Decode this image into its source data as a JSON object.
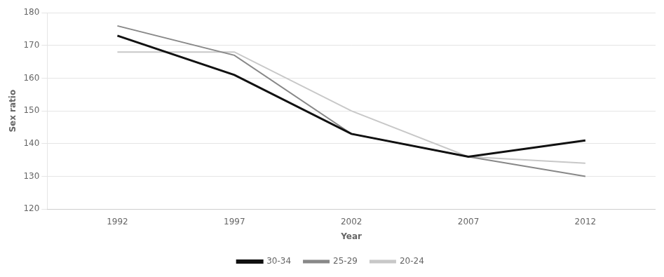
{
  "chart_data": {
    "type": "line",
    "x": [
      1992,
      1997,
      2002,
      2007,
      2012
    ],
    "series": [
      {
        "name": "20-24",
        "color": "#c8c8c8",
        "values": [
          168,
          168,
          150,
          136,
          134
        ]
      },
      {
        "name": "25-29",
        "color": "#888888",
        "values": [
          176,
          167,
          143,
          136,
          130
        ]
      },
      {
        "name": "30-34",
        "color": "#111111",
        "values": [
          173,
          161,
          143,
          136,
          141
        ]
      }
    ],
    "xlim": [
      1989,
      2015
    ],
    "xticks": [
      1992,
      1997,
      2002,
      2007,
      2012
    ],
    "ylim": [
      120,
      180
    ],
    "yticks": [
      120,
      130,
      140,
      150,
      160,
      170,
      180
    ],
    "x_label": "Year",
    "y_label": "Sex ratio",
    "grid": "y",
    "legend": "bottom"
  }
}
